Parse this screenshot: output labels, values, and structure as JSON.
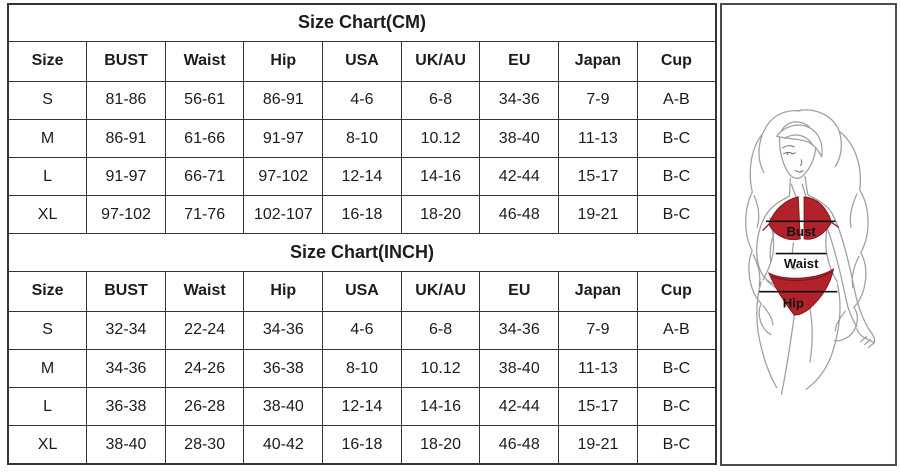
{
  "tables": [
    {
      "title": "Size Chart(CM)",
      "headers": [
        "Size",
        "BUST",
        "Waist",
        "Hip",
        "USA",
        "UK/AU",
        "EU",
        "Japan",
        "Cup"
      ],
      "rows": [
        [
          "S",
          "81-86",
          "56-61",
          "86-91",
          "4-6",
          "6-8",
          "34-36",
          "7-9",
          "A-B"
        ],
        [
          "M",
          "86-91",
          "61-66",
          "91-97",
          "8-10",
          "10.12",
          "38-40",
          "11-13",
          "B-C"
        ],
        [
          "L",
          "91-97",
          "66-71",
          "97-102",
          "12-14",
          "14-16",
          "42-44",
          "15-17",
          "B-C"
        ],
        [
          "XL",
          "97-102",
          "71-76",
          "102-107",
          "16-18",
          "18-20",
          "46-48",
          "19-21",
          "B-C"
        ]
      ]
    },
    {
      "title": "Size Chart(INCH)",
      "headers": [
        "Size",
        "BUST",
        "Waist",
        "Hip",
        "USA",
        "UK/AU",
        "EU",
        "Japan",
        "Cup"
      ],
      "rows": [
        [
          "S",
          "32-34",
          "22-24",
          "34-36",
          "4-6",
          "6-8",
          "34-36",
          "7-9",
          "A-B"
        ],
        [
          "M",
          "34-36",
          "24-26",
          "36-38",
          "8-10",
          "10.12",
          "38-40",
          "11-13",
          "B-C"
        ],
        [
          "L",
          "36-38",
          "26-28",
          "38-40",
          "12-14",
          "14-16",
          "42-44",
          "15-17",
          "B-C"
        ],
        [
          "XL",
          "38-40",
          "28-30",
          "40-42",
          "16-18",
          "18-20",
          "46-48",
          "19-21",
          "B-C"
        ]
      ]
    }
  ],
  "figure": {
    "measurement_labels": {
      "bust": "Bust",
      "waist": "Waist",
      "hip": "Hip"
    },
    "colors": {
      "bikini_red": "#b2222a",
      "line_art": "#a0a0a0",
      "measure_line": "#111111",
      "panel_border": "#4d4d4d"
    }
  }
}
